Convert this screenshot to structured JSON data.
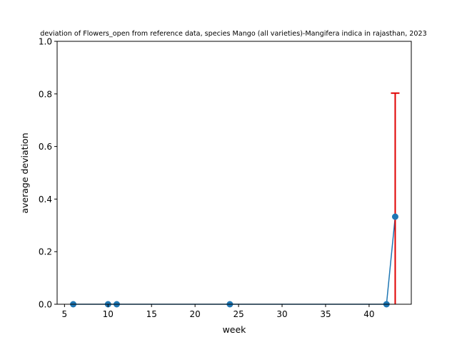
{
  "chart_data": {
    "type": "line",
    "title": "deviation of Flowers_open from reference data, species Mango (all varieties)-Mangifera indica in rajasthan, 2023",
    "xlabel": "week",
    "ylabel": "average deviation",
    "xlim": [
      4.15,
      44.85
    ],
    "ylim": [
      0,
      1
    ],
    "x_ticks": [
      5,
      10,
      15,
      20,
      25,
      30,
      35,
      40
    ],
    "y_ticks": [
      0.0,
      0.2,
      0.4,
      0.6,
      0.8,
      1.0
    ],
    "x_tick_labels": [
      "5",
      "10",
      "15",
      "20",
      "25",
      "30",
      "35",
      "40"
    ],
    "y_tick_labels": [
      "0.0",
      "0.2",
      "0.4",
      "0.6",
      "0.8",
      "1.0"
    ],
    "grid": false,
    "series": [
      {
        "color": "#1f77b4",
        "marker": "circle",
        "x": [
          6,
          10,
          11,
          24,
          42,
          43
        ],
        "y": [
          0,
          0,
          0,
          0,
          0,
          0.333
        ]
      }
    ],
    "error_bars": [
      {
        "x": 43,
        "y": 0.333,
        "lower": 0.333,
        "upper": 0.47,
        "color": "#e00000"
      }
    ]
  }
}
